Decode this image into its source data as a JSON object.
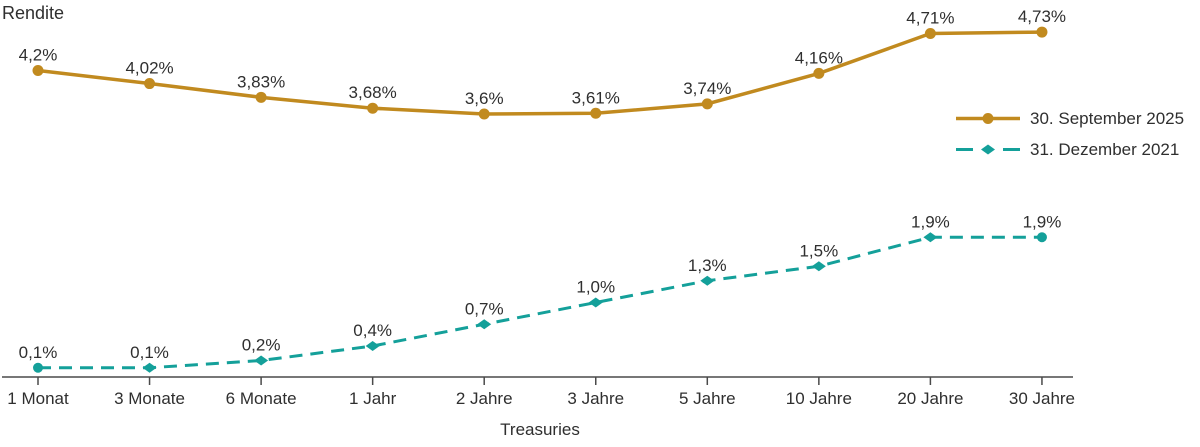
{
  "title": "Rendite",
  "xlabel": "Treasuries",
  "colors": {
    "series_2025": "#C18A1F",
    "series_2021": "#14A09A",
    "text": "#2F2F2F",
    "axis": "#4A4A4A"
  },
  "legend": [
    {
      "label": "30. September 2025",
      "color": "#C18A1F",
      "style": "solid",
      "marker": "circle"
    },
    {
      "label": "31. Dezember 2021",
      "color": "#14A09A",
      "style": "dashed",
      "marker": "diamond"
    }
  ],
  "chart_data": {
    "type": "line",
    "title": "Rendite",
    "xlabel": "Treasuries",
    "ylabel": "",
    "ylim": [
      0,
      5.2
    ],
    "grid": false,
    "legend_position": "right",
    "categories": [
      "1 Monat",
      "3 Monate",
      "6 Monate",
      "1 Jahr",
      "2 Jahre",
      "3 Jahre",
      "5 Jahre",
      "10 Jahre",
      "20 Jahre",
      "30 Jahre"
    ],
    "series": [
      {
        "name": "30. September 2025",
        "color": "#C18A1F",
        "line_style": "solid",
        "marker": "circle",
        "values": [
          4.2,
          4.02,
          3.83,
          3.68,
          3.6,
          3.61,
          3.74,
          4.16,
          4.71,
          4.73
        ],
        "labels": [
          "4,2%",
          "4,02%",
          "3,83%",
          "3,68%",
          "3,6%",
          "3,61%",
          "3,74%",
          "4,16%",
          "4,71%",
          "4,73%"
        ]
      },
      {
        "name": "31. Dezember 2021",
        "color": "#14A09A",
        "line_style": "dashed",
        "marker": "diamond",
        "values": [
          0.1,
          0.1,
          0.2,
          0.4,
          0.7,
          1.0,
          1.3,
          1.5,
          1.9,
          1.9
        ],
        "labels": [
          "0,1%",
          "0,1%",
          "0,2%",
          "0,4%",
          "0,7%",
          "1,0%",
          "1,3%",
          "1,5%",
          "1,9%",
          "1,9%"
        ]
      }
    ]
  }
}
